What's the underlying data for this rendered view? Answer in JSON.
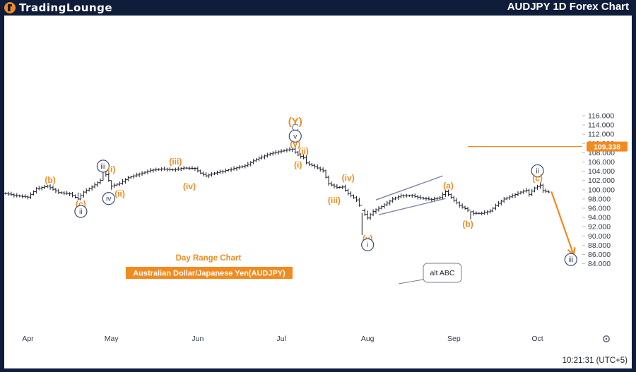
{
  "header": {
    "brand": "TradingLounge",
    "title": "AUDJPY 1D Forex Chart"
  },
  "colors": {
    "orange": "#f28a1f",
    "navy": "#3b4a7a",
    "price_tag": "#f28a1f",
    "bg": "#0f1c3a"
  },
  "chart_data": {
    "type": "candlestick",
    "symbol": "AUDJPY",
    "timeframe": "1D",
    "ylim": [
      83.0,
      117.3
    ],
    "y_ticks": [
      84,
      86,
      88,
      90,
      92,
      94,
      96,
      98,
      100,
      102,
      104,
      106,
      108,
      110,
      112,
      114,
      116
    ],
    "y_tick_labels": [
      "84.000",
      "86.000",
      "88.000",
      "90.000",
      "92.000",
      "94.000",
      "96.000",
      "98.000",
      "100.000",
      "102.000",
      "104.000",
      "106.000",
      "108.000",
      "110.000",
      "112.000",
      "114.000",
      "116.000"
    ],
    "x_labels": [
      {
        "label": "Apr",
        "day": 8
      },
      {
        "label": "May",
        "day": 38
      },
      {
        "label": "Jun",
        "day": 69
      },
      {
        "label": "Jul",
        "day": 99
      },
      {
        "label": "Aug",
        "day": 130
      },
      {
        "label": "Sep",
        "day": 161
      },
      {
        "label": "Oct",
        "day": 191
      }
    ],
    "current_price": "109.338",
    "current_price_value": 109.338,
    "time_display": "10:21:31 (UTC+5)",
    "path": [
      [
        0,
        99.2
      ],
      [
        4,
        98.7
      ],
      [
        8,
        98.4
      ],
      [
        11,
        100.2
      ],
      [
        15,
        100.8
      ],
      [
        19,
        99.4
      ],
      [
        23,
        99.1
      ],
      [
        26,
        98.0
      ],
      [
        28,
        99.5
      ],
      [
        31,
        100.6
      ],
      [
        34,
        102.0
      ],
      [
        35,
        104.5
      ],
      [
        37,
        102.0
      ],
      [
        38,
        100.8
      ],
      [
        41,
        101.4
      ],
      [
        44,
        102.6
      ],
      [
        48,
        103.4
      ],
      [
        52,
        104.2
      ],
      [
        56,
        104.5
      ],
      [
        60,
        104.3
      ],
      [
        64,
        104.7
      ],
      [
        68,
        104.6
      ],
      [
        70,
        103.6
      ],
      [
        72,
        103.0
      ],
      [
        75,
        103.6
      ],
      [
        80,
        104.3
      ],
      [
        86,
        105.2
      ],
      [
        90,
        106.6
      ],
      [
        95,
        107.8
      ],
      [
        100,
        108.5
      ],
      [
        103,
        108.8
      ],
      [
        105,
        107.5
      ],
      [
        107,
        106.9
      ],
      [
        108,
        105.8
      ],
      [
        111,
        105.0
      ],
      [
        114,
        104.1
      ],
      [
        116,
        101.3
      ],
      [
        119,
        100.5
      ],
      [
        121,
        100.6
      ],
      [
        123,
        99.2
      ],
      [
        126,
        97.8
      ],
      [
        128,
        95.5
      ],
      [
        130,
        93.9
      ],
      [
        132,
        95.3
      ],
      [
        134,
        96.0
      ],
      [
        137,
        97.1
      ],
      [
        139,
        98.0
      ],
      [
        142,
        98.7
      ],
      [
        146,
        98.7
      ],
      [
        150,
        98.1
      ],
      [
        153,
        97.9
      ],
      [
        156,
        98.3
      ],
      [
        158,
        99.6
      ],
      [
        160,
        98.3
      ],
      [
        163,
        96.6
      ],
      [
        166,
        95.6
      ],
      [
        168,
        94.9
      ],
      [
        171,
        94.9
      ],
      [
        174,
        95.4
      ],
      [
        176,
        96.6
      ],
      [
        179,
        98.0
      ],
      [
        182,
        98.7
      ],
      [
        185,
        99.5
      ],
      [
        187,
        99.9
      ],
      [
        188,
        99.0
      ],
      [
        190,
        100.4
      ],
      [
        192,
        101.0
      ],
      [
        193,
        99.8
      ],
      [
        195,
        99.5
      ]
    ],
    "bands": [
      [
        26,
        97.8,
        99.4
      ],
      [
        35,
        102.0,
        105.1
      ],
      [
        38,
        100.0,
        102.0
      ],
      [
        108,
        105.5,
        107.5
      ],
      [
        128,
        90.2,
        95.0
      ],
      [
        130,
        93.5,
        95.5
      ],
      [
        167,
        93.6,
        95.3
      ],
      [
        192,
        100.2,
        101.6
      ]
    ],
    "waves": [
      {
        "label": "(b)",
        "day": 16,
        "price": 102.1,
        "style": "orange"
      },
      {
        "label": "(c)",
        "day": 27,
        "price": 96.9,
        "style": "orange"
      },
      {
        "label": "ii",
        "day": 27,
        "price": 95.3,
        "style": "circle"
      },
      {
        "label": "iii",
        "day": 35,
        "price": 105.1,
        "style": "circle"
      },
      {
        "label": "(i)",
        "day": 38,
        "price": 104.4,
        "style": "orange"
      },
      {
        "label": "(ii)",
        "day": 41,
        "price": 99.1,
        "style": "orange"
      },
      {
        "label": "iv",
        "day": 37,
        "price": 98.1,
        "style": "circle"
      },
      {
        "label": "(iii)",
        "day": 61,
        "price": 106.1,
        "style": "orange"
      },
      {
        "label": "(iv)",
        "day": 66,
        "price": 100.7,
        "style": "orange"
      },
      {
        "label": "(Y)",
        "day": 104,
        "price": 114.9,
        "style": "orange-lg"
      },
      {
        "label": "C",
        "day": 104,
        "price": 113.6,
        "style": "navy-plain"
      },
      {
        "label": "v",
        "day": 104,
        "price": 111.6,
        "style": "circle"
      },
      {
        "label": "(v)",
        "day": 104,
        "price": 109.9,
        "style": "orange"
      },
      {
        "label": "(ii)",
        "day": 107,
        "price": 108.4,
        "style": "orange"
      },
      {
        "label": "(i)",
        "day": 105,
        "price": 105.4,
        "style": "orange"
      },
      {
        "label": "(iv)",
        "day": 123,
        "price": 102.6,
        "style": "orange"
      },
      {
        "label": "(iii)",
        "day": 118,
        "price": 97.7,
        "style": "orange"
      },
      {
        "label": "(v)",
        "day": 130,
        "price": 89.4,
        "style": "orange"
      },
      {
        "label": "i",
        "day": 130,
        "price": 88.1,
        "style": "circle"
      },
      {
        "label": "(a)",
        "day": 159,
        "price": 100.9,
        "style": "orange"
      },
      {
        "label": "(b)",
        "day": 166,
        "price": 92.6,
        "style": "orange"
      },
      {
        "label": "ii",
        "day": 191,
        "price": 104.1,
        "style": "circle"
      },
      {
        "label": "(c)",
        "day": 191,
        "price": 102.5,
        "style": "orange"
      },
      {
        "label": "iii",
        "day": 203,
        "price": 84.9,
        "style": "circle"
      }
    ],
    "annotations": {
      "subtitle": "Day Range Chart",
      "pair_label": "Australian Dollar/Japanese Yen(AUDJPY)",
      "alt_label": "alt ABC"
    },
    "channel": {
      "lower": [
        [
          134,
          94.6
        ],
        [
          158,
          98.1
        ]
      ],
      "upper": [
        [
          133,
          97.8
        ],
        [
          157,
          103.0
        ]
      ]
    },
    "projection": {
      "from": [
        196,
        99.6
      ],
      "to": [
        204,
        85.9
      ]
    },
    "price_line_from_day": 166
  }
}
